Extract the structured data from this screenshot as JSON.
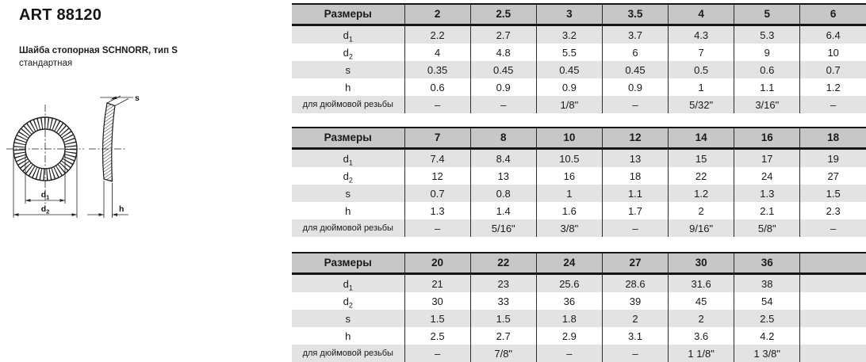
{
  "header": {
    "title": "ART 88120",
    "subtitle_line1": "Шайба стопорная SCHNORR, тип S",
    "subtitle_line2": "стандартная"
  },
  "drawing": {
    "d1_main": "d",
    "d1_sub": "1",
    "d2_main": "d",
    "d2_sub": "2",
    "s_label": "s",
    "h_label": "h"
  },
  "tables": [
    {
      "header_label": "Размеры",
      "sizes": [
        "2",
        "2.5",
        "3",
        "3.5",
        "4",
        "5",
        "6"
      ],
      "rows": [
        {
          "label": "d",
          "sub": "1",
          "small": false,
          "values": [
            "2.2",
            "2.7",
            "3.2",
            "3.7",
            "4.3",
            "5.3",
            "6.4"
          ]
        },
        {
          "label": "d",
          "sub": "2",
          "small": false,
          "values": [
            "4",
            "4.8",
            "5.5",
            "6",
            "7",
            "9",
            "10"
          ]
        },
        {
          "label": "s",
          "sub": "",
          "small": false,
          "values": [
            "0.35",
            "0.45",
            "0.45",
            "0.45",
            "0.5",
            "0.6",
            "0.7"
          ]
        },
        {
          "label": "h",
          "sub": "",
          "small": false,
          "values": [
            "0.6",
            "0.9",
            "0.9",
            "0.9",
            "1",
            "1.1",
            "1.2"
          ]
        },
        {
          "label": "для дюймовой резьбы",
          "sub": "",
          "small": true,
          "values": [
            "–",
            "–",
            "1/8\"",
            "–",
            "5/32\"",
            "3/16\"",
            "–"
          ]
        }
      ]
    },
    {
      "header_label": "Размеры",
      "sizes": [
        "7",
        "8",
        "10",
        "12",
        "14",
        "16",
        "18"
      ],
      "rows": [
        {
          "label": "d",
          "sub": "1",
          "small": false,
          "values": [
            "7.4",
            "8.4",
            "10.5",
            "13",
            "15",
            "17",
            "19"
          ]
        },
        {
          "label": "d",
          "sub": "2",
          "small": false,
          "values": [
            "12",
            "13",
            "16",
            "18",
            "22",
            "24",
            "27"
          ]
        },
        {
          "label": "s",
          "sub": "",
          "small": false,
          "values": [
            "0.7",
            "0.8",
            "1",
            "1.1",
            "1.2",
            "1.3",
            "1.5"
          ]
        },
        {
          "label": "h",
          "sub": "",
          "small": false,
          "values": [
            "1.3",
            "1.4",
            "1.6",
            "1.7",
            "2",
            "2.1",
            "2.3"
          ]
        },
        {
          "label": "для дюймовой резьбы",
          "sub": "",
          "small": true,
          "values": [
            "–",
            "5/16\"",
            "3/8\"",
            "–",
            "9/16\"",
            "5/8\"",
            "–"
          ]
        }
      ]
    },
    {
      "header_label": "Размеры",
      "sizes": [
        "20",
        "22",
        "24",
        "27",
        "30",
        "36",
        ""
      ],
      "rows": [
        {
          "label": "d",
          "sub": "1",
          "small": false,
          "values": [
            "21",
            "23",
            "25.6",
            "28.6",
            "31.6",
            "38",
            ""
          ]
        },
        {
          "label": "d",
          "sub": "2",
          "small": false,
          "values": [
            "30",
            "33",
            "36",
            "39",
            "45",
            "54",
            ""
          ]
        },
        {
          "label": "s",
          "sub": "",
          "small": false,
          "values": [
            "1.5",
            "1.5",
            "1.8",
            "2",
            "2",
            "2.5",
            ""
          ]
        },
        {
          "label": "h",
          "sub": "",
          "small": false,
          "values": [
            "2.5",
            "2.7",
            "2.9",
            "3.1",
            "3.6",
            "4.2",
            ""
          ]
        },
        {
          "label": "для дюймовой резьбы",
          "sub": "",
          "small": true,
          "values": [
            "–",
            "7/8\"",
            "–",
            "–",
            "1 1/8\"",
            "1 3/8\"",
            ""
          ]
        }
      ]
    }
  ]
}
